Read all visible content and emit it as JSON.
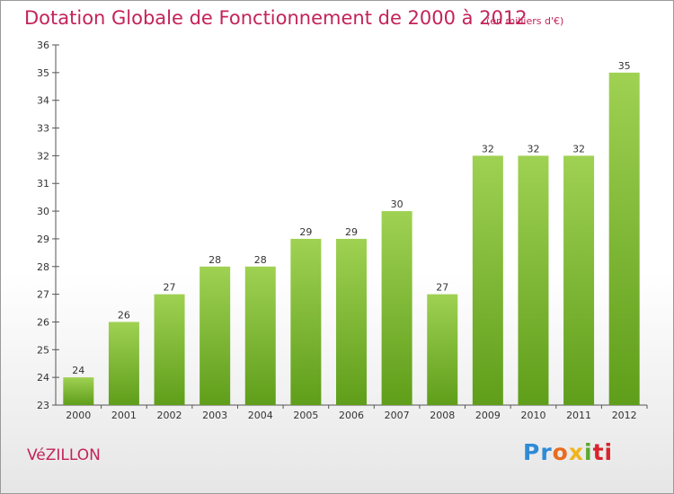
{
  "header": {
    "title": "Dotation Globale de Fonctionnement de 2000 à 2012",
    "subtitle": "(en milliers d'€)"
  },
  "footer": {
    "commune": "VéZILLON",
    "logo_parts": [
      "Pr",
      "o",
      "x",
      "i",
      "ti"
    ]
  },
  "colors": {
    "title": "#c3235a",
    "bar_top": "#9fd152",
    "bar_bottom": "#5f9e1a",
    "axis": "#555555",
    "grid": "#dddddd"
  },
  "chart_data": {
    "type": "bar",
    "title": "Dotation Globale de Fonctionnement de 2000 à 2012",
    "subtitle": "(en milliers d'€)",
    "xlabel": "",
    "ylabel": "",
    "categories": [
      "2000",
      "2001",
      "2002",
      "2003",
      "2004",
      "2005",
      "2006",
      "2007",
      "2008",
      "2009",
      "2010",
      "2011",
      "2012"
    ],
    "values": [
      24,
      26,
      27,
      28,
      28,
      29,
      29,
      30,
      27,
      32,
      32,
      32,
      35
    ],
    "ylim": [
      23,
      36
    ],
    "yticks": [
      23,
      24,
      25,
      26,
      27,
      28,
      29,
      30,
      31,
      32,
      33,
      34,
      35,
      36
    ],
    "grid": false,
    "legend": "none"
  }
}
